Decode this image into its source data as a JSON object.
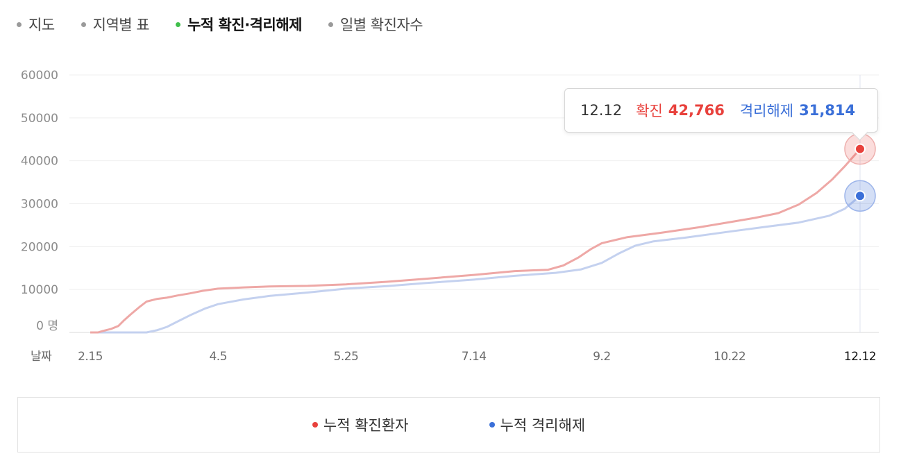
{
  "tabs": [
    {
      "label": "지도",
      "active": false
    },
    {
      "label": "지역별 표",
      "active": false
    },
    {
      "label": "누적 확진·격리해제",
      "active": true
    },
    {
      "label": "일별 확진자수",
      "active": false
    }
  ],
  "tooltip": {
    "date": "12.12",
    "confirmed_label": "확진",
    "confirmed_value": "42,766",
    "released_label": "격리해제",
    "released_value": "31,814"
  },
  "legend": {
    "confirmed": "누적 확진환자",
    "released": "누적 격리해제"
  },
  "colors": {
    "confirmed_line": "#eea8a6",
    "confirmed_point": "#e8413c",
    "released_line": "#c4d1ef",
    "released_point": "#3a6fd8",
    "active_tab_dot": "#3fbf4b"
  },
  "chart_data": {
    "type": "line",
    "x_axis_label": "날짜",
    "y_unit": "명",
    "ylim": [
      0,
      60000
    ],
    "y_ticks": [
      "60000",
      "50000",
      "40000",
      "30000",
      "20000",
      "10000",
      "0 명"
    ],
    "x_ticks": [
      "2.15",
      "4.5",
      "5.25",
      "7.14",
      "9.2",
      "10.22",
      "12.12"
    ],
    "grid": true,
    "legend_position": "bottom",
    "series": [
      {
        "name": "누적 확진환자",
        "key": "confirmed",
        "points": [
          [
            "2.15",
            0
          ],
          [
            "2.18",
            0
          ],
          [
            "2.20",
            350
          ],
          [
            "2.23",
            800
          ],
          [
            "2.26",
            1500
          ],
          [
            "2.28",
            2700
          ],
          [
            "3.2",
            4300
          ],
          [
            "3.5",
            5800
          ],
          [
            "3.8",
            7200
          ],
          [
            "3.12",
            7800
          ],
          [
            "3.16",
            8100
          ],
          [
            "3.20",
            8600
          ],
          [
            "3.25",
            9100
          ],
          [
            "3.30",
            9700
          ],
          [
            "4.5",
            10200
          ],
          [
            "4.15",
            10500
          ],
          [
            "4.25",
            10700
          ],
          [
            "5.10",
            10850
          ],
          [
            "5.25",
            11200
          ],
          [
            "6.10",
            11800
          ],
          [
            "6.25",
            12500
          ],
          [
            "7.14",
            13400
          ],
          [
            "7.30",
            14300
          ],
          [
            "8.12",
            14600
          ],
          [
            "8.18",
            15600
          ],
          [
            "8.24",
            17500
          ],
          [
            "8.29",
            19500
          ],
          [
            "9.2",
            20800
          ],
          [
            "9.12",
            22200
          ],
          [
            "9.25",
            23200
          ],
          [
            "10.10",
            24500
          ],
          [
            "10.22",
            25700
          ],
          [
            "11.1",
            26700
          ],
          [
            "11.10",
            27800
          ],
          [
            "11.18",
            29800
          ],
          [
            "11.25",
            32500
          ],
          [
            "12.1",
            35600
          ],
          [
            "12.6",
            38700
          ],
          [
            "12.12",
            42766
          ]
        ]
      },
      {
        "name": "누적 격리해제",
        "key": "released",
        "points": [
          [
            "2.15",
            0
          ],
          [
            "3.1",
            0
          ],
          [
            "3.8",
            0
          ],
          [
            "3.12",
            500
          ],
          [
            "3.16",
            1300
          ],
          [
            "3.20",
            2500
          ],
          [
            "3.25",
            4000
          ],
          [
            "3.31",
            5600
          ],
          [
            "4.5",
            6600
          ],
          [
            "4.15",
            7700
          ],
          [
            "4.25",
            8500
          ],
          [
            "5.10",
            9300
          ],
          [
            "5.25",
            10200
          ],
          [
            "6.10",
            10800
          ],
          [
            "6.25",
            11500
          ],
          [
            "7.14",
            12300
          ],
          [
            "7.30",
            13200
          ],
          [
            "8.15",
            13900
          ],
          [
            "8.25",
            14700
          ],
          [
            "9.2",
            16200
          ],
          [
            "9.9",
            18500
          ],
          [
            "9.15",
            20200
          ],
          [
            "9.22",
            21200
          ],
          [
            "10.5",
            22100
          ],
          [
            "10.22",
            23500
          ],
          [
            "11.5",
            24600
          ],
          [
            "11.18",
            25600
          ],
          [
            "11.30",
            27200
          ],
          [
            "12.6",
            28800
          ],
          [
            "12.12",
            31814
          ]
        ]
      }
    ],
    "selected_point": {
      "x": "12.12",
      "confirmed": 42766,
      "released": 31814
    }
  }
}
